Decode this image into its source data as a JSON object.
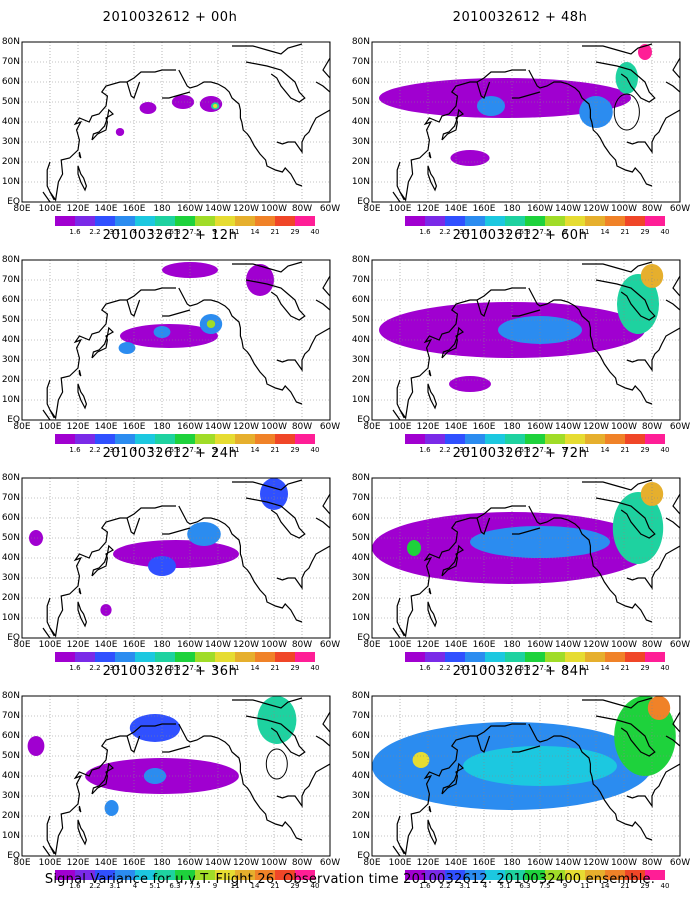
{
  "caption": "Signal Variance for u,v,T. Flight 26. Observation time 2010032612. 2010032400 ensemble.",
  "y_tick_labels": [
    "80N",
    "70N",
    "60N",
    "50N",
    "40N",
    "30N",
    "20N",
    "10N",
    "EQ"
  ],
  "x_tick_labels": [
    "80E",
    "100E",
    "120E",
    "140E",
    "160E",
    "180",
    "160W",
    "140W",
    "120W",
    "100W",
    "80W",
    "60W"
  ],
  "colorbar": {
    "levels": [
      "1.6",
      "2.2",
      "3.1",
      "4",
      "5.1",
      "6.3",
      "7.5",
      "9",
      "11",
      "14",
      "21",
      "29",
      "40"
    ],
    "colors": [
      "#a000d0",
      "#7a2ae8",
      "#3050ff",
      "#2b8cf0",
      "#1cc8e0",
      "#1ed2a0",
      "#1ed23c",
      "#a0dc28",
      "#e6dc32",
      "#e6af2d",
      "#f08228",
      "#f04628",
      "#ff1e96"
    ]
  },
  "panels": [
    {
      "title": "2010032612 + 00h"
    },
    {
      "title": "2010032612 + 12h"
    },
    {
      "title": "2010032612 + 24h"
    },
    {
      "title": "2010032612 + 36h"
    },
    {
      "title": "2010032612 + 48h"
    },
    {
      "title": "2010032612 + 60h"
    },
    {
      "title": "2010032612 + 72h"
    },
    {
      "title": "2010032612 + 84h"
    }
  ],
  "fields": {
    "00h": [
      {
        "lon": 195,
        "lat": 50,
        "rx": 8,
        "ry": 3.5,
        "level": 0
      },
      {
        "lon": 215,
        "lat": 49,
        "rx": 8,
        "ry": 4,
        "level": 0
      },
      {
        "lon": 218,
        "lat": 48,
        "rx": 3,
        "ry": 1.8,
        "level": 5
      },
      {
        "lon": 218,
        "lat": 48,
        "rx": 1.5,
        "ry": 1,
        "level": 8
      },
      {
        "lon": 170,
        "lat": 47,
        "rx": 6,
        "ry": 3,
        "level": 0
      },
      {
        "lon": 150,
        "lat": 35,
        "rx": 3,
        "ry": 2,
        "level": 0
      }
    ],
    "12h": [
      {
        "lon": 185,
        "lat": 42,
        "rx": 35,
        "ry": 6,
        "level": 0
      },
      {
        "lon": 215,
        "lat": 48,
        "rx": 8,
        "ry": 5,
        "level": 3
      },
      {
        "lon": 215,
        "lat": 48,
        "rx": 3,
        "ry": 2,
        "level": 7
      },
      {
        "lon": 180,
        "lat": 44,
        "rx": 6,
        "ry": 3,
        "level": 3
      },
      {
        "lon": 200,
        "lat": 75,
        "rx": 20,
        "ry": 4,
        "level": 0
      },
      {
        "lon": 155,
        "lat": 36,
        "rx": 6,
        "ry": 3,
        "level": 3
      },
      {
        "lon": 250,
        "lat": 70,
        "rx": 10,
        "ry": 8,
        "level": 0
      }
    ],
    "24h": [
      {
        "lon": 190,
        "lat": 42,
        "rx": 45,
        "ry": 7,
        "level": 0
      },
      {
        "lon": 210,
        "lat": 52,
        "rx": 12,
        "ry": 6,
        "level": 3
      },
      {
        "lon": 140,
        "lat": 14,
        "rx": 4,
        "ry": 3,
        "level": 0
      },
      {
        "lon": 180,
        "lat": 36,
        "rx": 10,
        "ry": 5,
        "level": 2
      },
      {
        "lon": 260,
        "lat": 72,
        "rx": 10,
        "ry": 8,
        "level": 2
      },
      {
        "lon": 90,
        "lat": 50,
        "rx": 5,
        "ry": 4,
        "level": 0
      }
    ],
    "36h": [
      {
        "lon": 180,
        "lat": 40,
        "rx": 55,
        "ry": 9,
        "level": 0
      },
      {
        "lon": 175,
        "lat": 40,
        "rx": 8,
        "ry": 4,
        "level": 3
      },
      {
        "lon": 175,
        "lat": 64,
        "rx": 18,
        "ry": 7,
        "level": 2
      },
      {
        "lon": 262,
        "lat": 68,
        "rx": 14,
        "ry": 12,
        "level": 5
      },
      {
        "lon": 144,
        "lat": 24,
        "rx": 5,
        "ry": 4,
        "level": 3
      },
      {
        "lon": 90,
        "lat": 55,
        "rx": 6,
        "ry": 5,
        "level": 0
      }
    ],
    "48h": [
      {
        "lon": 175,
        "lat": 52,
        "rx": 90,
        "ry": 10,
        "level": 0
      },
      {
        "lon": 240,
        "lat": 45,
        "rx": 12,
        "ry": 8,
        "level": 3
      },
      {
        "lon": 165,
        "lat": 48,
        "rx": 10,
        "ry": 5,
        "level": 3
      },
      {
        "lon": 150,
        "lat": 22,
        "rx": 14,
        "ry": 4,
        "level": 0
      },
      {
        "lon": 262,
        "lat": 62,
        "rx": 8,
        "ry": 8,
        "level": 5
      },
      {
        "lon": 275,
        "lat": 75,
        "rx": 5,
        "ry": 4,
        "level": 12
      }
    ],
    "60h": [
      {
        "lon": 180,
        "lat": 45,
        "rx": 95,
        "ry": 14,
        "level": 0
      },
      {
        "lon": 200,
        "lat": 45,
        "rx": 30,
        "ry": 7,
        "level": 3
      },
      {
        "lon": 270,
        "lat": 58,
        "rx": 15,
        "ry": 15,
        "level": 5
      },
      {
        "lon": 280,
        "lat": 72,
        "rx": 8,
        "ry": 6,
        "level": 9
      },
      {
        "lon": 150,
        "lat": 18,
        "rx": 15,
        "ry": 4,
        "level": 0
      }
    ],
    "72h": [
      {
        "lon": 180,
        "lat": 45,
        "rx": 100,
        "ry": 18,
        "level": 0
      },
      {
        "lon": 200,
        "lat": 48,
        "rx": 50,
        "ry": 8,
        "level": 3
      },
      {
        "lon": 110,
        "lat": 45,
        "rx": 5,
        "ry": 4,
        "level": 6
      },
      {
        "lon": 270,
        "lat": 55,
        "rx": 18,
        "ry": 18,
        "level": 5
      },
      {
        "lon": 280,
        "lat": 72,
        "rx": 8,
        "ry": 6,
        "level": 9
      }
    ],
    "84h": [
      {
        "lon": 180,
        "lat": 45,
        "rx": 100,
        "ry": 22,
        "level": 3
      },
      {
        "lon": 200,
        "lat": 45,
        "rx": 55,
        "ry": 10,
        "level": 4
      },
      {
        "lon": 115,
        "lat": 48,
        "rx": 6,
        "ry": 4,
        "level": 8
      },
      {
        "lon": 275,
        "lat": 60,
        "rx": 22,
        "ry": 20,
        "level": 6
      },
      {
        "lon": 285,
        "lat": 74,
        "rx": 8,
        "ry": 6,
        "level": 10
      }
    ]
  },
  "circles": [
    {
      "panel": "36h",
      "lon": 262,
      "lat": 46,
      "r": 5
    },
    {
      "panel": "48h",
      "lon": 262,
      "lat": 45,
      "r": 6
    }
  ]
}
